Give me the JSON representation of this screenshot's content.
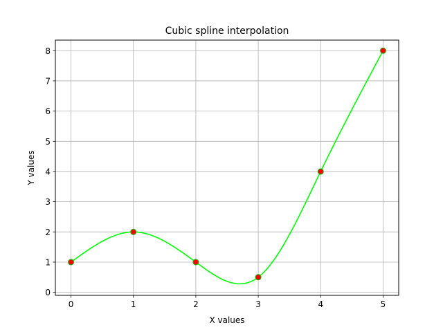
{
  "chart_data": {
    "type": "line",
    "title": "Cubic spline interpolation",
    "xlabel": "X values",
    "ylabel": "Y values",
    "xlim": [
      -0.25,
      5.25
    ],
    "ylim": [
      -0.1,
      8.35
    ],
    "xticks": [
      0,
      1,
      2,
      3,
      4,
      5
    ],
    "yticks": [
      0,
      1,
      2,
      3,
      4,
      5,
      6,
      7,
      8
    ],
    "grid": true,
    "legend": "none",
    "series": [
      {
        "kind": "scatter",
        "x": [
          0,
          1,
          2,
          3,
          4,
          5
        ],
        "y": [
          1,
          2,
          1,
          0.5,
          4,
          8
        ],
        "color": "#ff0000",
        "edge_color": "#00c000"
      },
      {
        "kind": "spline",
        "interpolation": "natural cubic",
        "x": [
          0,
          1,
          2,
          3,
          4,
          5
        ],
        "y": [
          1,
          2,
          1,
          0.5,
          4,
          8
        ],
        "color": "#00ff00"
      }
    ]
  }
}
